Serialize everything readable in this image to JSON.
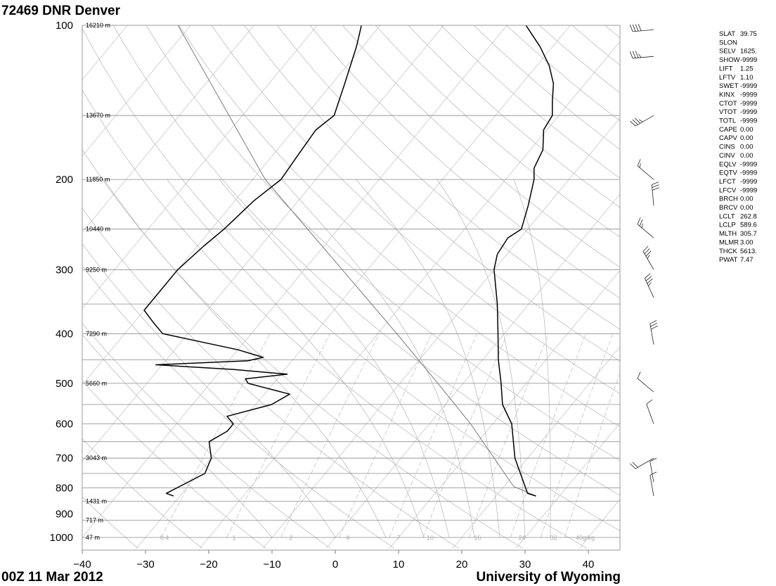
{
  "chart_data": {
    "type": "skew-t log-p sounding",
    "title": "72469 DNR Denver",
    "footer_left": "00Z 11 Mar 2012",
    "footer_right": "University of Wyoming",
    "pressure_range": [
      1000,
      100
    ],
    "temperature_range": [
      -40,
      45
    ],
    "pressure_labels": [
      100,
      200,
      300,
      400,
      500,
      600,
      700,
      800,
      900,
      1000
    ],
    "temperature_ticks": [
      -40,
      -30,
      -20,
      -10,
      0,
      10,
      20,
      30,
      40
    ],
    "isobars": [
      1000,
      925,
      850,
      800,
      750,
      700,
      650,
      600,
      550,
      500,
      450,
      400,
      350,
      300,
      250,
      200,
      150,
      100
    ],
    "heights": [
      {
        "p": 100,
        "label": "16210 m"
      },
      {
        "p": 150,
        "label": "13670 m"
      },
      {
        "p": 200,
        "label": "11850 m"
      },
      {
        "p": 250,
        "label": "10440 m"
      },
      {
        "p": 300,
        "label": "9250 m"
      },
      {
        "p": 400,
        "label": "7290 m"
      },
      {
        "p": 500,
        "label": "5660 m"
      },
      {
        "p": 700,
        "label": "3043 m"
      },
      {
        "p": 850,
        "label": "1431 m"
      },
      {
        "p": 925,
        "label": "717 m"
      },
      {
        "p": 1000,
        "label": "47 m"
      }
    ],
    "mixing_ratio_labels": [
      {
        "t": -27,
        "label": "0.4"
      },
      {
        "t": -16,
        "label": "1"
      },
      {
        "t": -7,
        "label": "2"
      },
      {
        "t": 2,
        "label": "4"
      },
      {
        "t": 10,
        "label": "7"
      },
      {
        "t": 15,
        "label": "10"
      },
      {
        "t": 22.5,
        "label": "16"
      },
      {
        "t": 29.5,
        "label": "24"
      },
      {
        "t": 34.5,
        "label": "32"
      },
      {
        "t": 39.5,
        "label": "40g/kg"
      }
    ],
    "temperature_profile": [
      [
        830,
        26.3
      ],
      [
        820,
        24.6
      ],
      [
        700,
        18.0
      ],
      [
        600,
        13.0
      ],
      [
        550,
        9.0
      ],
      [
        500,
        6.0
      ],
      [
        450,
        2.5
      ],
      [
        400,
        -1.0
      ],
      [
        350,
        -5.0
      ],
      [
        300,
        -10.0
      ],
      [
        280,
        -11.5
      ],
      [
        260,
        -12.0
      ],
      [
        250,
        -11.0
      ],
      [
        225,
        -13.0
      ],
      [
        200,
        -15.5
      ],
      [
        190,
        -17.0
      ],
      [
        175,
        -18.0
      ],
      [
        160,
        -20.5
      ],
      [
        150,
        -21.0
      ],
      [
        140,
        -23.0
      ],
      [
        130,
        -25.0
      ],
      [
        120,
        -28.0
      ],
      [
        110,
        -32.0
      ],
      [
        100,
        -37.0
      ]
    ],
    "dewpoint_profile": [
      [
        830,
        -31.0
      ],
      [
        820,
        -32.5
      ],
      [
        750,
        -29.0
      ],
      [
        700,
        -30.0
      ],
      [
        650,
        -32.5
      ],
      [
        620,
        -31.0
      ],
      [
        600,
        -31.0
      ],
      [
        580,
        -33.0
      ],
      [
        550,
        -27.5
      ],
      [
        525,
        -26.0
      ],
      [
        500,
        -34.0
      ],
      [
        490,
        -35.0
      ],
      [
        480,
        -29.0
      ],
      [
        470,
        -38.0
      ],
      [
        460,
        -51.0
      ],
      [
        452,
        -37.0
      ],
      [
        445,
        -35.0
      ],
      [
        430,
        -40.0
      ],
      [
        400,
        -54.0
      ],
      [
        380,
        -57.0
      ],
      [
        360,
        -60.0
      ],
      [
        330,
        -60.0
      ],
      [
        300,
        -60.0
      ],
      [
        270,
        -59.0
      ],
      [
        250,
        -58.0
      ],
      [
        220,
        -57.0
      ],
      [
        200,
        -55.5
      ],
      [
        180,
        -56.0
      ],
      [
        160,
        -56.5
      ],
      [
        150,
        -55.5
      ],
      [
        130,
        -58.0
      ],
      [
        110,
        -61.0
      ],
      [
        100,
        -63.0
      ]
    ],
    "parcel_path": [
      [
        830,
        26.3
      ],
      [
        795,
        21.5
      ],
      [
        600,
        6.5
      ],
      [
        500,
        -4.0
      ],
      [
        400,
        -17.0
      ],
      [
        300,
        -34.0
      ],
      [
        200,
        -58.0
      ],
      [
        100,
        -92.0
      ]
    ],
    "dry_adiabats_theta_K": [
      230,
      240,
      250,
      260,
      270,
      280,
      290,
      300,
      310,
      320,
      330,
      340,
      350,
      360,
      370,
      380,
      390,
      400,
      410,
      420,
      430,
      440,
      450,
      460,
      470,
      480,
      490,
      500
    ],
    "moist_adiabats_c": [
      -10,
      0,
      8,
      14,
      18,
      22,
      26,
      30,
      34
    ],
    "mixing_ratios_gkg": [
      0.4,
      1,
      2,
      4,
      7,
      10,
      16,
      24,
      32,
      40
    ],
    "wind_barbs": [
      {
        "p": 102,
        "dir": 265,
        "kt": 40
      },
      {
        "p": 115,
        "dir": 265,
        "kt": 35
      },
      {
        "p": 150,
        "dir": 240,
        "kt": 35
      },
      {
        "p": 200,
        "dir": 310,
        "kt": 15
      },
      {
        "p": 225,
        "dir": 355,
        "kt": 30
      },
      {
        "p": 260,
        "dir": 310,
        "kt": 25
      },
      {
        "p": 300,
        "dir": 330,
        "kt": 35
      },
      {
        "p": 340,
        "dir": 335,
        "kt": 35
      },
      {
        "p": 420,
        "dir": 350,
        "kt": 30
      },
      {
        "p": 520,
        "dir": 310,
        "kt": 10
      },
      {
        "p": 600,
        "dir": 340,
        "kt": 10
      },
      {
        "p": 700,
        "dir": 240,
        "kt": 20
      },
      {
        "p": 780,
        "dir": 350,
        "kt": 10
      },
      {
        "p": 830,
        "dir": 350,
        "kt": 10
      }
    ],
    "indices": [
      {
        "name": "SLAT",
        "value": "39.75"
      },
      {
        "name": "SLON",
        "value": ""
      },
      {
        "name": "SELV",
        "value": "1625."
      },
      {
        "name": "SHOW",
        "value": "-9999"
      },
      {
        "name": "LIFT",
        "value": "1.25"
      },
      {
        "name": "LFTV",
        "value": "1.10"
      },
      {
        "name": "SWET",
        "value": "-9999"
      },
      {
        "name": "KINX",
        "value": "-9999"
      },
      {
        "name": "CTOT",
        "value": "-9999"
      },
      {
        "name": "VTOT",
        "value": "-9999"
      },
      {
        "name": "TOTL",
        "value": "-9999"
      },
      {
        "name": "CAPE",
        "value": "0.00"
      },
      {
        "name": "CAPV",
        "value": "0.00"
      },
      {
        "name": "CINS",
        "value": "0.00"
      },
      {
        "name": "CINV",
        "value": "0.00"
      },
      {
        "name": "EQLV",
        "value": "-9999"
      },
      {
        "name": "EQTV",
        "value": "-9999"
      },
      {
        "name": "LFCT",
        "value": "-9999"
      },
      {
        "name": "LFCV",
        "value": "-9999"
      },
      {
        "name": "BRCH",
        "value": "0.00"
      },
      {
        "name": "BRCV",
        "value": "0.00"
      },
      {
        "name": "LCLT",
        "value": "262.8"
      },
      {
        "name": "LCLP",
        "value": "589.6"
      },
      {
        "name": "MLTH",
        "value": "305.7"
      },
      {
        "name": "MLMR",
        "value": "3.00"
      },
      {
        "name": "THCK",
        "value": "5613."
      },
      {
        "name": "PWAT",
        "value": "7.47"
      }
    ],
    "colors": {
      "temperature": "#000000",
      "dewpoint": "#000000",
      "grid": "#bdbdbd",
      "isobar": "#8a8a8a",
      "parcel": "#7a7a7a",
      "labels": "#000000"
    }
  }
}
